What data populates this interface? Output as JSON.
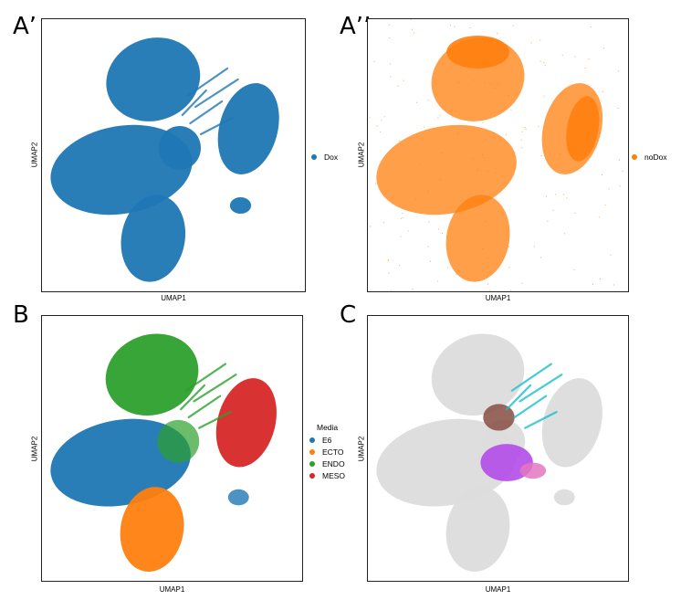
{
  "colors": {
    "E6": "#1f77b4",
    "ECTO": "#ff7f0e",
    "ENDO": "#2ca02c",
    "MESO": "#d62728",
    "background": "#dcdcdc"
  },
  "chart_data": [
    {
      "panel": "A’",
      "type": "scatter",
      "xlabel": "UMAP1",
      "ylabel": "UMAP2",
      "legend": {
        "title": "",
        "items": [
          {
            "label": "Dox",
            "color": "#1f77b4"
          }
        ],
        "placement": "right"
      },
      "grid": false
    },
    {
      "panel": "A’’",
      "type": "scatter",
      "xlabel": "UMAP1",
      "ylabel": "UMAP2",
      "legend": {
        "title": "",
        "items": [
          {
            "label": "noDox",
            "color": "#ff7f0e"
          }
        ],
        "placement": "right"
      },
      "grid": false
    },
    {
      "panel": "B",
      "type": "scatter",
      "xlabel": "UMAP1",
      "ylabel": "UMAP2",
      "legend": {
        "title": "Media",
        "items": [
          {
            "label": "E6",
            "color": "#1f77b4"
          },
          {
            "label": "ECTO",
            "color": "#ff7f0e"
          },
          {
            "label": "ENDO",
            "color": "#2ca02c"
          },
          {
            "label": "MESO",
            "color": "#d62728"
          }
        ],
        "placement": "right"
      },
      "grid": false
    },
    {
      "panel": "C",
      "type": "scatter",
      "xlabel": "UMAP1",
      "ylabel": "UMAP2",
      "legend": null,
      "grid": false
    }
  ]
}
